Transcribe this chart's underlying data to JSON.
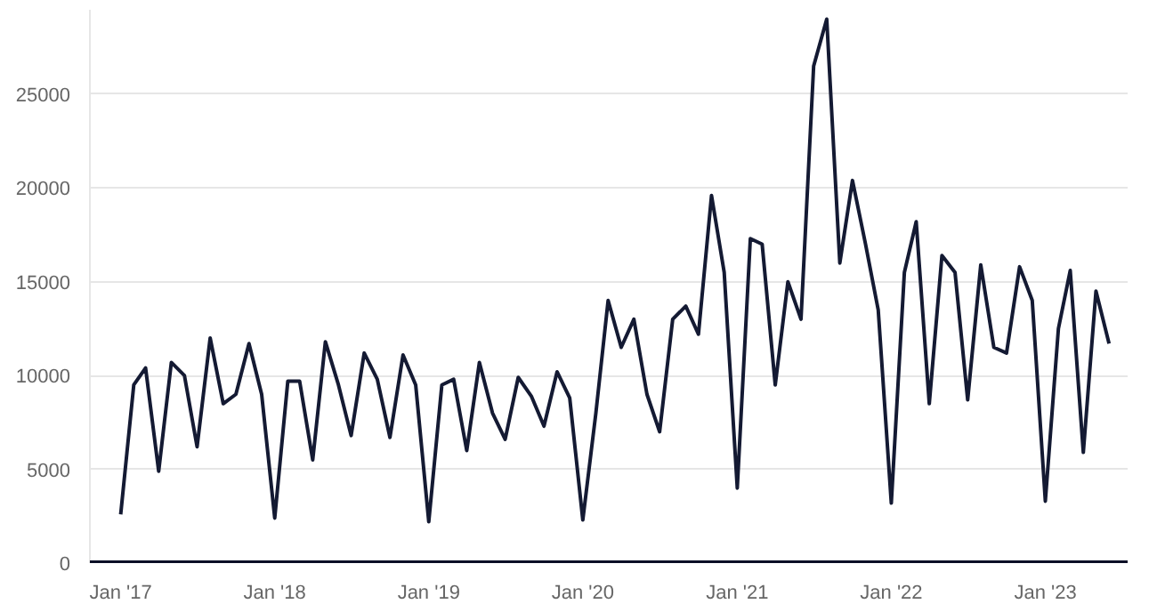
{
  "chart_data": {
    "type": "line",
    "x": [
      "2017-01",
      "2017-02",
      "2017-03",
      "2017-04",
      "2017-05",
      "2017-06",
      "2017-07",
      "2017-08",
      "2017-09",
      "2017-10",
      "2017-11",
      "2017-12",
      "2018-01",
      "2018-02",
      "2018-03",
      "2018-04",
      "2018-05",
      "2018-06",
      "2018-07",
      "2018-08",
      "2018-09",
      "2018-10",
      "2018-11",
      "2018-12",
      "2019-01",
      "2019-02",
      "2019-03",
      "2019-04",
      "2019-05",
      "2019-06",
      "2019-07",
      "2019-08",
      "2019-09",
      "2019-10",
      "2019-11",
      "2019-12",
      "2020-01",
      "2020-02",
      "2020-03",
      "2020-04",
      "2020-05",
      "2020-06",
      "2020-07",
      "2020-08",
      "2020-09",
      "2020-10",
      "2020-11",
      "2020-12",
      "2021-01",
      "2021-02",
      "2021-03",
      "2021-04",
      "2021-05",
      "2021-06",
      "2021-07",
      "2021-08",
      "2021-09",
      "2021-10",
      "2021-11",
      "2021-12",
      "2022-01",
      "2022-02",
      "2022-03",
      "2022-04",
      "2022-05",
      "2022-06",
      "2022-07",
      "2022-08",
      "2022-09",
      "2022-10",
      "2022-11",
      "2022-12",
      "2023-01",
      "2023-02",
      "2023-03",
      "2023-04",
      "2023-05",
      "2023-06"
    ],
    "series": [
      {
        "color": "#141a33",
        "values": [
          2600,
          9500,
          10400,
          4900,
          10700,
          10000,
          6200,
          12000,
          8500,
          9000,
          11700,
          9000,
          2400,
          9700,
          9700,
          5500,
          11800,
          9500,
          6800,
          11200,
          9800,
          6700,
          11100,
          9500,
          2200,
          9500,
          9800,
          6000,
          10700,
          8000,
          6600,
          9900,
          8900,
          7300,
          10200,
          8800,
          2300,
          8000,
          14000,
          11500,
          13000,
          9000,
          7000,
          13000,
          13700,
          12200,
          19600,
          15500,
          4000,
          17300,
          17000,
          9500,
          15000,
          13000,
          26500,
          29000,
          16000,
          20400,
          17000,
          13500,
          3200,
          15500,
          18200,
          8500,
          16400,
          15500,
          8700,
          15900,
          11500,
          11200,
          15800,
          14000,
          3300,
          12500,
          15600,
          5900,
          14500,
          11700
        ]
      }
    ],
    "xlim": [
      "2016-10-20",
      "2023-07-15"
    ],
    "xticks": [
      {
        "value": "2017-01",
        "label": "Jan '17"
      },
      {
        "value": "2018-01",
        "label": "Jan '18"
      },
      {
        "value": "2019-01",
        "label": "Jan '19"
      },
      {
        "value": "2020-01",
        "label": "Jan '20"
      },
      {
        "value": "2021-01",
        "label": "Jan '21"
      },
      {
        "value": "2022-01",
        "label": "Jan '22"
      },
      {
        "value": "2023-01",
        "label": "Jan '23"
      }
    ],
    "ylim": [
      0,
      29500
    ],
    "yticks": [
      0,
      5000,
      10000,
      15000,
      20000,
      25000
    ],
    "grid": "y",
    "line_style": "solid"
  }
}
